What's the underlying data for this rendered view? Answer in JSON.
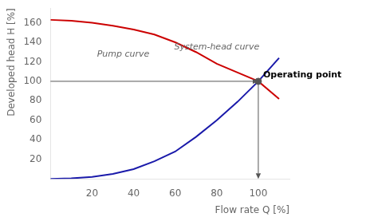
{
  "chart_data": {
    "type": "line",
    "xlabel": "Flow rate Q [%]",
    "ylabel": "Developed head H [%]",
    "x": [
      0,
      10,
      20,
      30,
      40,
      50,
      60,
      70,
      80,
      90,
      100,
      110
    ],
    "series": [
      {
        "name": "Pump curve",
        "color": "#cc0000",
        "values": [
          163,
          162,
          160,
          157,
          153,
          148,
          140,
          130,
          118,
          109,
          100,
          82
        ]
      },
      {
        "name": "System-head curve",
        "color": "#1a1aaa",
        "values": [
          0,
          0.5,
          2,
          5,
          10,
          18,
          28,
          43,
          60,
          79,
          100,
          124
        ]
      }
    ],
    "operating_point": {
      "x": 100,
      "y": 100,
      "label": "Operating point",
      "color": "#555555"
    },
    "annotations": [
      {
        "text": "Pump curve",
        "x": 35,
        "y": 128
      },
      {
        "text": "System-head curve",
        "x": 80,
        "y": 135
      }
    ],
    "xlim": [
      0,
      115
    ],
    "ylim": [
      0,
      175
    ],
    "xticks": [
      20,
      40,
      60,
      80,
      100
    ],
    "yticks": [
      20,
      40,
      60,
      80,
      100,
      120,
      140,
      160
    ],
    "grid": false
  }
}
